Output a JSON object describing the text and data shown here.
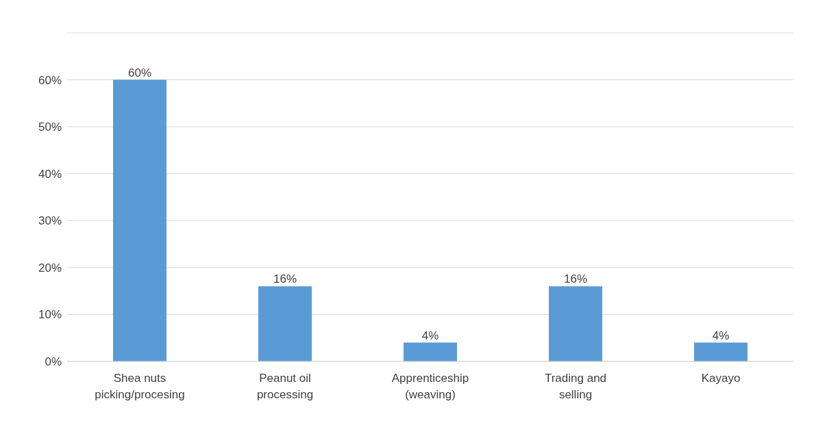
{
  "chart_data": {
    "type": "bar",
    "categories": [
      "Shea nuts picking/procesing",
      "Peanut oil processing",
      "Apprenticeship (weaving)",
      "Trading and selling",
      "Kayayo"
    ],
    "values": [
      60,
      16,
      4,
      16,
      4
    ],
    "color": "#5b9bd5",
    "value_labels": [
      "60%",
      "16%",
      "4%",
      "16%",
      "4%"
    ],
    "ylim": [
      0,
      70
    ],
    "yticks": [
      {
        "value": 0,
        "label": "0%"
      },
      {
        "value": 10,
        "label": "10%"
      },
      {
        "value": 20,
        "label": "20%"
      },
      {
        "value": 30,
        "label": "30%"
      },
      {
        "value": 40,
        "label": "40%"
      },
      {
        "value": 50,
        "label": "50%"
      },
      {
        "value": 60,
        "label": "60%"
      },
      {
        "value": 70,
        "label": null
      }
    ],
    "grid": "y"
  }
}
